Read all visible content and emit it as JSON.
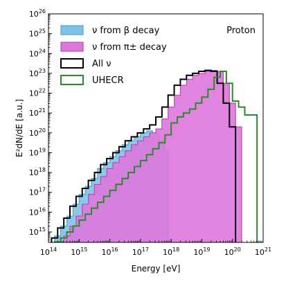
{
  "chart_data": {
    "type": "area",
    "title": "",
    "annotation": "Proton",
    "xlabel": "Energy [eV]",
    "ylabel": "E²dN/dE [a.u.]",
    "xscale": "log",
    "yscale": "log",
    "xlim": [
      100000000000000.0,
      1e+21
    ],
    "ylim": [
      300000000000000.0,
      1e+26
    ],
    "grid": false,
    "legend_position": "top-left",
    "x_ticks": [
      {
        "exp": 14,
        "label": "10",
        "sup": "14"
      },
      {
        "exp": 15,
        "label": "10",
        "sup": "15"
      },
      {
        "exp": 16,
        "label": "10",
        "sup": "16"
      },
      {
        "exp": 17,
        "label": "10",
        "sup": "17"
      },
      {
        "exp": 18,
        "label": "10",
        "sup": "18"
      },
      {
        "exp": 19,
        "label": "10",
        "sup": "19"
      },
      {
        "exp": 20,
        "label": "10",
        "sup": "20"
      },
      {
        "exp": 21,
        "label": "10",
        "sup": "21"
      }
    ],
    "y_ticks": [
      {
        "exp": 15,
        "label": "10",
        "sup": "15"
      },
      {
        "exp": 16,
        "label": "10",
        "sup": "16"
      },
      {
        "exp": 17,
        "label": "10",
        "sup": "17"
      },
      {
        "exp": 18,
        "label": "10",
        "sup": "18"
      },
      {
        "exp": 19,
        "label": "10",
        "sup": "19"
      },
      {
        "exp": 20,
        "label": "10",
        "sup": "20"
      },
      {
        "exp": 21,
        "label": "10",
        "sup": "21"
      },
      {
        "exp": 22,
        "label": "10",
        "sup": "22"
      },
      {
        "exp": 23,
        "label": "10",
        "sup": "23"
      },
      {
        "exp": 24,
        "label": "10",
        "sup": "24"
      },
      {
        "exp": 25,
        "label": "10",
        "sup": "25"
      },
      {
        "exp": 26,
        "label": "10",
        "sup": "26"
      }
    ],
    "series": [
      {
        "name": "ν from β decay",
        "style": "filled-step",
        "fill": "#7ec3e6",
        "stroke": "#5b9fc7",
        "log10x": [
          14.2,
          14.4,
          14.6,
          14.8,
          15.0,
          15.2,
          15.4,
          15.6,
          15.8,
          16.0,
          16.2,
          16.4,
          16.6,
          16.8,
          17.0,
          17.2,
          17.4,
          17.6,
          17.8,
          17.9
        ],
        "log10y": [
          14.8,
          15.3,
          15.8,
          16.4,
          16.9,
          17.3,
          17.7,
          18.2,
          18.5,
          18.8,
          19.1,
          19.4,
          19.6,
          19.8,
          20.0,
          20.1,
          20.0,
          19.6,
          19.1,
          14.0
        ]
      },
      {
        "name": "ν from π± decay",
        "style": "filled-step",
        "fill": "#dd77dd",
        "stroke": "#b050b0",
        "log10x": [
          14.3,
          14.5,
          14.7,
          14.9,
          15.1,
          15.3,
          15.5,
          15.7,
          15.9,
          16.1,
          16.3,
          16.5,
          16.7,
          16.9,
          17.1,
          17.3,
          17.5,
          17.7,
          17.9,
          18.1,
          18.3,
          18.5,
          18.7,
          18.9,
          19.1,
          19.3,
          19.5,
          19.7,
          19.9,
          20.1,
          20.3
        ],
        "log10y": [
          14.5,
          14.8,
          15.3,
          15.8,
          16.4,
          16.9,
          17.4,
          17.8,
          18.2,
          18.5,
          18.8,
          19.1,
          19.4,
          19.6,
          19.8,
          20.0,
          20.2,
          20.7,
          21.3,
          21.9,
          22.4,
          22.7,
          22.9,
          23.0,
          23.1,
          23.15,
          23.1,
          22.5,
          21.5,
          20.3,
          14.0
        ]
      },
      {
        "name": "All ν",
        "style": "step",
        "stroke": "#000000",
        "log10x": [
          14.1,
          14.3,
          14.5,
          14.7,
          14.9,
          15.1,
          15.3,
          15.5,
          15.7,
          15.9,
          16.1,
          16.3,
          16.5,
          16.7,
          16.9,
          17.1,
          17.3,
          17.5,
          17.7,
          17.9,
          18.1,
          18.3,
          18.5,
          18.7,
          18.9,
          19.1,
          19.3,
          19.5,
          19.7,
          19.9,
          20.1,
          20.3
        ],
        "log10y": [
          14.7,
          15.2,
          15.7,
          16.3,
          16.8,
          17.2,
          17.6,
          18.0,
          18.4,
          18.7,
          19.0,
          19.3,
          19.6,
          19.8,
          20.0,
          20.2,
          20.4,
          20.8,
          21.3,
          21.9,
          22.4,
          22.7,
          22.9,
          23.0,
          23.1,
          23.15,
          23.1,
          22.5,
          21.5,
          20.3,
          14.0,
          14.0
        ]
      },
      {
        "name": "UHECR",
        "style": "step",
        "stroke": "#2a8a2a",
        "log10x": [
          14.2,
          14.4,
          14.6,
          14.8,
          15.0,
          15.2,
          15.4,
          15.6,
          15.8,
          16.0,
          16.2,
          16.4,
          16.6,
          16.8,
          17.0,
          17.2,
          17.4,
          17.6,
          17.8,
          18.0,
          18.2,
          18.4,
          18.6,
          18.8,
          19.0,
          19.2,
          19.4,
          19.6,
          19.8,
          20.0,
          20.2,
          20.4,
          20.6,
          20.8
        ],
        "log10y": [
          14.5,
          14.7,
          15.0,
          15.3,
          15.6,
          15.9,
          16.2,
          16.5,
          16.8,
          17.1,
          17.4,
          17.7,
          18.0,
          18.3,
          18.6,
          18.9,
          19.2,
          19.5,
          19.9,
          20.5,
          20.8,
          21.0,
          21.2,
          21.5,
          21.8,
          22.2,
          22.8,
          23.1,
          22.5,
          21.6,
          21.3,
          20.9,
          20.9,
          14.0
        ]
      }
    ]
  }
}
